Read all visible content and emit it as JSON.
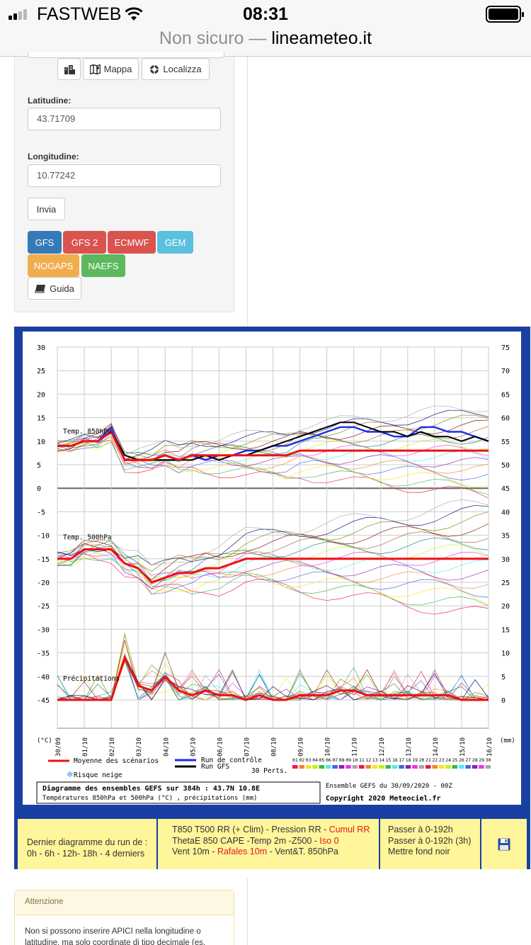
{
  "status": {
    "carrier": "FASTWEB",
    "time": "08:31"
  },
  "url_bar": {
    "prefix": "Non sicuro — ",
    "domain": "lineameteo.it"
  },
  "form": {
    "mappa_label": "Mappa",
    "localizza_label": "Localizza",
    "lat_label": "Latitudine:",
    "lat_value": "43.71709",
    "lon_label": "Longitudine:",
    "lon_value": "10.77242",
    "submit_label": "Invia",
    "models": [
      "GFS",
      "GFS 2",
      "ECMWF",
      "GEM",
      "NOGAPS",
      "NAEFS"
    ],
    "guide_label": "Guida"
  },
  "colors": {
    "gfs": "#337ab7",
    "gfs2": "#d9534f",
    "ecmwf": "#d9534f",
    "gem": "#5bc0de",
    "nogaps": "#f0ad4e",
    "naefs": "#5cb85c",
    "frame": "#1a3fa3",
    "yellow": "#fff59a"
  },
  "chart_data": {
    "type": "line",
    "left_axis_ticks": [
      "30",
      "25",
      "20",
      "15",
      "10",
      "5",
      "0",
      "-5",
      "-10",
      "-15",
      "-20",
      "-25",
      "-30",
      "-35",
      "-40",
      "-45"
    ],
    "right_axis_ticks": [
      "75",
      "70",
      "65",
      "60",
      "55",
      "50",
      "45",
      "40",
      "35",
      "30",
      "25",
      "20",
      "15",
      "10",
      "5",
      "0"
    ],
    "left_unit": "(°C)",
    "right_unit": "(mm)",
    "x_labels": [
      "30/09",
      "01/10",
      "02/10",
      "03/10",
      "04/10",
      "05/10",
      "06/10",
      "07/10",
      "08/10",
      "09/10",
      "10/10",
      "11/10",
      "12/10",
      "13/10",
      "14/10",
      "15/10",
      "16/10"
    ],
    "panel_labels": [
      "Temp. 850hPa",
      "Temp. 500hPa",
      "Précipitations"
    ],
    "series": [
      {
        "name": "Moyenne des scénarios T850",
        "values": [
          9,
          9,
          10,
          10,
          12,
          6,
          6,
          6,
          7,
          6,
          7,
          7,
          7,
          7,
          7,
          7,
          7,
          7,
          8,
          8,
          8,
          8,
          8,
          8,
          8,
          8,
          8,
          8,
          8,
          8,
          8,
          8,
          8
        ]
      },
      {
        "name": "Run de contrôle T850",
        "values": [
          9,
          9,
          10,
          10,
          13,
          6,
          6,
          6,
          6,
          6,
          7,
          6,
          7,
          7,
          8,
          8,
          9,
          9,
          10,
          11,
          12,
          13,
          13,
          12,
          12,
          11,
          11,
          13,
          13,
          12,
          12,
          11,
          10
        ]
      },
      {
        "name": "Run GFS T850",
        "values": [
          9,
          9,
          10,
          10,
          12,
          7,
          6,
          6,
          6,
          6,
          6,
          7,
          6,
          7,
          7,
          8,
          9,
          10,
          11,
          12,
          13,
          14,
          14,
          13,
          12,
          12,
          11,
          12,
          11,
          11,
          10,
          11,
          10
        ]
      },
      {
        "name": "Moyenne des scénarios T500",
        "values": [
          -15,
          -15,
          -13,
          -13,
          -13,
          -16,
          -17,
          -20,
          -19,
          -18,
          -18,
          -17,
          -17,
          -16,
          -15,
          -15,
          -15,
          -15,
          -15,
          -15,
          -15,
          -15,
          -15,
          -15,
          -15,
          -15,
          -15,
          -15,
          -15,
          -15,
          -15,
          -15,
          -15
        ]
      },
      {
        "name": "Moyenne des scénarios Précipitations",
        "values": [
          0,
          0,
          0,
          0,
          0,
          9,
          3,
          2,
          5,
          2,
          1,
          2,
          1,
          1,
          0,
          1,
          0,
          0,
          1,
          1,
          1,
          2,
          2,
          1,
          1,
          1,
          1,
          1,
          1,
          1,
          0,
          0,
          0
        ]
      }
    ],
    "legend": {
      "mean": "Moyenne des scénarios",
      "control": "Run de contrôle",
      "gfs": "Run GFS",
      "snow": "Risque neige",
      "perts": "30 Perts."
    },
    "pert_numbers": [
      "01",
      "02",
      "03",
      "04",
      "05",
      "06",
      "07",
      "08",
      "09",
      "10",
      "11",
      "12",
      "13",
      "14",
      "15",
      "16",
      "17",
      "18",
      "19",
      "20",
      "21",
      "22",
      "23",
      "24",
      "25",
      "26",
      "27",
      "28",
      "29",
      "30"
    ],
    "title": "Diagramme des ensembles GEFS sur 384h : 43.7N 10.8E",
    "subtitle": "Températures 850hPa et 500hPa (°C) , précipitations (mm)",
    "run_info": "Ensemble GEFS du 30/09/2020 - 00Z",
    "copyright": "Copyright 2020 Meteociel.fr"
  },
  "run_table": {
    "col1": "Dernier diagramme du run de : 0h - 6h - 12h- 18h - 4 derniers",
    "col2_line1a": "T850 T500 RR (+ Clim) - Pression RR - ",
    "col2_line1b": "Cumul RR",
    "col2_line2a": "ThetaE 850 CAPE -Temp 2m -Z500 - ",
    "col2_line2b": "Iso 0",
    "col2_line3a": "Vent 10m - ",
    "col2_line3b": "Rafales 10m",
    "col2_line3c": " - Vent&T. 850hPa",
    "col3_line1": "Passer à 0-192h",
    "col3_line2": "Passer à 0-192h (3h)",
    "col3_line3": "Mettre fond noir"
  },
  "alert": {
    "heading": "Attenzione",
    "body": "Non si possono inserire APICI nella longitudine o latitudine, ma solo coordinate di tipo decimale (es."
  }
}
